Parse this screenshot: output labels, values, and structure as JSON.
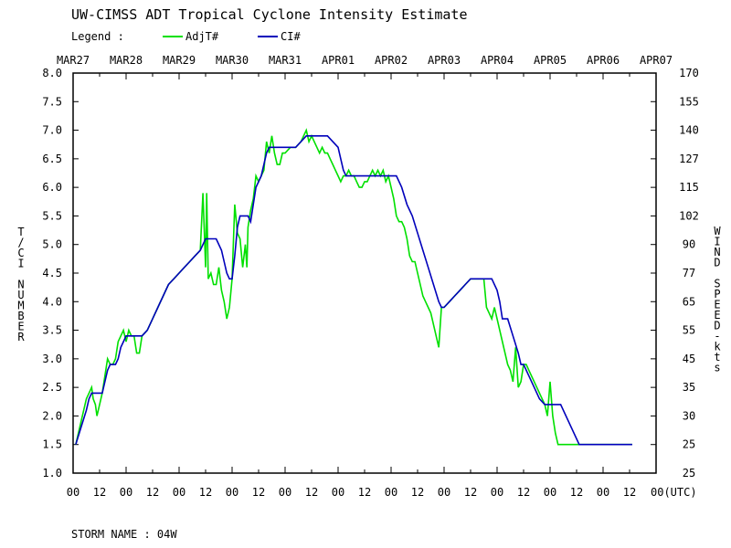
{
  "chart_data": {
    "type": "line",
    "title": "UW-CIMSS ADT Tropical Cyclone Intensity Estimate",
    "legend_label": "Legend :",
    "storm_label": "STORM NAME : 04W",
    "ylabel_left": "T/CI NUMBER",
    "ylabel_right": "WIND SPEED-kts",
    "ylim": [
      1.0,
      8.0
    ],
    "xlim_days": [
      0,
      11
    ],
    "date_labels": [
      "MAR27",
      "MAR28",
      "MAR29",
      "MAR30",
      "MAR31",
      "APR01",
      "APR02",
      "APR03",
      "APR04",
      "APR05",
      "APR06",
      "APR07"
    ],
    "hour_ticks": [
      "00",
      "12",
      "00",
      "12",
      "00",
      "12",
      "00",
      "12",
      "00",
      "12",
      "00",
      "12",
      "00",
      "12",
      "00",
      "12",
      "00",
      "12",
      "00",
      "12",
      "00",
      "12",
      "00(UTC)"
    ],
    "y_ticks_left": [
      "1.0",
      "1.5",
      "2.0",
      "2.5",
      "3.0",
      "3.5",
      "4.0",
      "4.5",
      "5.0",
      "5.5",
      "6.0",
      "6.5",
      "7.0",
      "7.5",
      "8.0"
    ],
    "y_ticks_right": [
      "25",
      "25",
      "30",
      "35",
      "45",
      "55",
      "65",
      "77",
      "90",
      "102",
      "115",
      "127",
      "140",
      "155",
      "170"
    ],
    "series": [
      {
        "name": "AdjT#",
        "color": "#00e000",
        "points": [
          [
            0.05,
            1.5
          ],
          [
            0.1,
            1.7
          ],
          [
            0.2,
            2.1
          ],
          [
            0.25,
            2.3
          ],
          [
            0.3,
            2.4
          ],
          [
            0.35,
            2.5
          ],
          [
            0.38,
            2.3
          ],
          [
            0.42,
            2.2
          ],
          [
            0.45,
            2.0
          ],
          [
            0.5,
            2.2
          ],
          [
            0.55,
            2.4
          ],
          [
            0.6,
            2.7
          ],
          [
            0.65,
            3.0
          ],
          [
            0.7,
            2.9
          ],
          [
            0.75,
            2.9
          ],
          [
            0.8,
            3.0
          ],
          [
            0.85,
            3.3
          ],
          [
            0.9,
            3.4
          ],
          [
            0.95,
            3.5
          ],
          [
            1.0,
            3.3
          ],
          [
            1.05,
            3.5
          ],
          [
            1.1,
            3.4
          ],
          [
            1.15,
            3.4
          ],
          [
            1.2,
            3.1
          ],
          [
            1.25,
            3.1
          ],
          [
            1.3,
            3.4
          ],
          [
            1.4,
            3.5
          ],
          [
            1.5,
            3.7
          ],
          [
            1.6,
            3.9
          ],
          [
            1.7,
            4.1
          ],
          [
            1.8,
            4.3
          ],
          [
            1.9,
            4.4
          ],
          [
            2.0,
            4.5
          ],
          [
            2.1,
            4.6
          ],
          [
            2.2,
            4.7
          ],
          [
            2.3,
            4.8
          ],
          [
            2.4,
            4.9
          ],
          [
            2.45,
            5.9
          ],
          [
            2.5,
            4.6
          ],
          [
            2.52,
            5.9
          ],
          [
            2.55,
            4.4
          ],
          [
            2.6,
            4.5
          ],
          [
            2.65,
            4.3
          ],
          [
            2.7,
            4.3
          ],
          [
            2.75,
            4.6
          ],
          [
            2.8,
            4.2
          ],
          [
            2.85,
            4.0
          ],
          [
            2.9,
            3.7
          ],
          [
            2.95,
            3.9
          ],
          [
            3.0,
            4.4
          ],
          [
            3.05,
            5.7
          ],
          [
            3.1,
            5.2
          ],
          [
            3.15,
            5.1
          ],
          [
            3.2,
            4.6
          ],
          [
            3.25,
            5.0
          ],
          [
            3.28,
            4.6
          ],
          [
            3.3,
            5.3
          ],
          [
            3.35,
            5.6
          ],
          [
            3.4,
            5.8
          ],
          [
            3.45,
            6.2
          ],
          [
            3.5,
            6.1
          ],
          [
            3.55,
            6.2
          ],
          [
            3.6,
            6.3
          ],
          [
            3.65,
            6.8
          ],
          [
            3.7,
            6.6
          ],
          [
            3.75,
            6.9
          ],
          [
            3.8,
            6.6
          ],
          [
            3.85,
            6.4
          ],
          [
            3.9,
            6.4
          ],
          [
            3.95,
            6.6
          ],
          [
            4.0,
            6.6
          ],
          [
            4.1,
            6.7
          ],
          [
            4.2,
            6.7
          ],
          [
            4.3,
            6.8
          ],
          [
            4.35,
            6.9
          ],
          [
            4.4,
            7.0
          ],
          [
            4.45,
            6.8
          ],
          [
            4.5,
            6.9
          ],
          [
            4.55,
            6.8
          ],
          [
            4.6,
            6.7
          ],
          [
            4.65,
            6.6
          ],
          [
            4.7,
            6.7
          ],
          [
            4.75,
            6.6
          ],
          [
            4.8,
            6.6
          ],
          [
            4.85,
            6.5
          ],
          [
            4.9,
            6.4
          ],
          [
            4.95,
            6.3
          ],
          [
            5.0,
            6.2
          ],
          [
            5.05,
            6.1
          ],
          [
            5.1,
            6.2
          ],
          [
            5.15,
            6.2
          ],
          [
            5.2,
            6.3
          ],
          [
            5.25,
            6.2
          ],
          [
            5.3,
            6.2
          ],
          [
            5.35,
            6.1
          ],
          [
            5.4,
            6.0
          ],
          [
            5.45,
            6.0
          ],
          [
            5.5,
            6.1
          ],
          [
            5.55,
            6.1
          ],
          [
            5.6,
            6.2
          ],
          [
            5.65,
            6.3
          ],
          [
            5.7,
            6.2
          ],
          [
            5.75,
            6.3
          ],
          [
            5.8,
            6.2
          ],
          [
            5.85,
            6.3
          ],
          [
            5.9,
            6.1
          ],
          [
            5.95,
            6.2
          ],
          [
            6.0,
            6.0
          ],
          [
            6.05,
            5.8
          ],
          [
            6.1,
            5.5
          ],
          [
            6.15,
            5.4
          ],
          [
            6.2,
            5.4
          ],
          [
            6.25,
            5.3
          ],
          [
            6.3,
            5.1
          ],
          [
            6.35,
            4.8
          ],
          [
            6.4,
            4.7
          ],
          [
            6.45,
            4.7
          ],
          [
            6.5,
            4.5
          ],
          [
            6.55,
            4.3
          ],
          [
            6.6,
            4.1
          ],
          [
            6.65,
            4.0
          ],
          [
            6.7,
            3.9
          ],
          [
            6.75,
            3.8
          ],
          [
            6.8,
            3.6
          ],
          [
            6.85,
            3.4
          ],
          [
            6.9,
            3.2
          ],
          [
            6.95,
            3.9
          ],
          [
            7.0,
            3.9
          ],
          [
            7.05,
            3.95
          ],
          [
            7.1,
            4.0
          ],
          [
            7.2,
            4.1
          ],
          [
            7.3,
            4.2
          ],
          [
            7.4,
            4.3
          ],
          [
            7.5,
            4.4
          ],
          [
            7.6,
            4.4
          ],
          [
            7.7,
            4.4
          ],
          [
            7.75,
            4.4
          ],
          [
            7.8,
            3.9
          ],
          [
            7.85,
            3.8
          ],
          [
            7.9,
            3.7
          ],
          [
            7.95,
            3.9
          ],
          [
            8.0,
            3.7
          ],
          [
            8.05,
            3.5
          ],
          [
            8.1,
            3.3
          ],
          [
            8.15,
            3.1
          ],
          [
            8.2,
            2.9
          ],
          [
            8.25,
            2.8
          ],
          [
            8.3,
            2.6
          ],
          [
            8.35,
            3.2
          ],
          [
            8.4,
            2.5
          ],
          [
            8.45,
            2.6
          ],
          [
            8.5,
            2.9
          ],
          [
            8.55,
            2.9
          ],
          [
            8.6,
            2.8
          ],
          [
            8.7,
            2.6
          ],
          [
            8.8,
            2.4
          ],
          [
            8.9,
            2.2
          ],
          [
            8.95,
            2.0
          ],
          [
            9.0,
            2.6
          ],
          [
            9.05,
            2.0
          ],
          [
            9.1,
            1.7
          ],
          [
            9.15,
            1.5
          ],
          [
            9.2,
            1.5
          ],
          [
            9.3,
            1.5
          ],
          [
            9.4,
            1.5
          ],
          [
            9.5,
            1.5
          ],
          [
            9.6,
            1.5
          ],
          [
            9.8,
            1.5
          ],
          [
            10.0,
            1.5
          ],
          [
            10.2,
            1.5
          ],
          [
            10.4,
            1.5
          ],
          [
            10.55,
            1.5
          ]
        ]
      },
      {
        "name": "CI#",
        "color": "#0000bb",
        "points": [
          [
            0.05,
            1.5
          ],
          [
            0.15,
            1.8
          ],
          [
            0.25,
            2.1
          ],
          [
            0.3,
            2.3
          ],
          [
            0.35,
            2.4
          ],
          [
            0.5,
            2.4
          ],
          [
            0.55,
            2.4
          ],
          [
            0.6,
            2.6
          ],
          [
            0.65,
            2.8
          ],
          [
            0.7,
            2.9
          ],
          [
            0.8,
            2.9
          ],
          [
            0.85,
            3.0
          ],
          [
            0.9,
            3.2
          ],
          [
            0.95,
            3.3
          ],
          [
            1.0,
            3.4
          ],
          [
            1.1,
            3.4
          ],
          [
            1.2,
            3.4
          ],
          [
            1.3,
            3.4
          ],
          [
            1.4,
            3.5
          ],
          [
            1.5,
            3.7
          ],
          [
            1.6,
            3.9
          ],
          [
            1.7,
            4.1
          ],
          [
            1.8,
            4.3
          ],
          [
            1.9,
            4.4
          ],
          [
            2.0,
            4.5
          ],
          [
            2.1,
            4.6
          ],
          [
            2.2,
            4.7
          ],
          [
            2.3,
            4.8
          ],
          [
            2.4,
            4.9
          ],
          [
            2.5,
            5.1
          ],
          [
            2.6,
            5.1
          ],
          [
            2.7,
            5.1
          ],
          [
            2.8,
            4.9
          ],
          [
            2.85,
            4.7
          ],
          [
            2.9,
            4.5
          ],
          [
            2.95,
            4.4
          ],
          [
            3.0,
            4.4
          ],
          [
            3.05,
            4.8
          ],
          [
            3.1,
            5.3
          ],
          [
            3.15,
            5.5
          ],
          [
            3.3,
            5.5
          ],
          [
            3.35,
            5.4
          ],
          [
            3.4,
            5.7
          ],
          [
            3.45,
            6.0
          ],
          [
            3.5,
            6.1
          ],
          [
            3.55,
            6.2
          ],
          [
            3.6,
            6.4
          ],
          [
            3.65,
            6.6
          ],
          [
            3.7,
            6.7
          ],
          [
            3.9,
            6.7
          ],
          [
            4.1,
            6.7
          ],
          [
            4.2,
            6.7
          ],
          [
            4.3,
            6.8
          ],
          [
            4.4,
            6.9
          ],
          [
            4.5,
            6.9
          ],
          [
            4.6,
            6.9
          ],
          [
            4.8,
            6.9
          ],
          [
            4.9,
            6.8
          ],
          [
            5.0,
            6.7
          ],
          [
            5.05,
            6.5
          ],
          [
            5.1,
            6.3
          ],
          [
            5.15,
            6.2
          ],
          [
            5.3,
            6.2
          ],
          [
            5.5,
            6.2
          ],
          [
            5.7,
            6.2
          ],
          [
            5.9,
            6.2
          ],
          [
            6.0,
            6.2
          ],
          [
            6.1,
            6.2
          ],
          [
            6.2,
            6.0
          ],
          [
            6.3,
            5.7
          ],
          [
            6.4,
            5.5
          ],
          [
            6.5,
            5.2
          ],
          [
            6.6,
            4.9
          ],
          [
            6.7,
            4.6
          ],
          [
            6.8,
            4.3
          ],
          [
            6.9,
            4.0
          ],
          [
            6.95,
            3.9
          ],
          [
            7.0,
            3.9
          ],
          [
            7.1,
            4.0
          ],
          [
            7.2,
            4.1
          ],
          [
            7.3,
            4.2
          ],
          [
            7.4,
            4.3
          ],
          [
            7.5,
            4.4
          ],
          [
            7.7,
            4.4
          ],
          [
            7.9,
            4.4
          ],
          [
            8.0,
            4.2
          ],
          [
            8.05,
            4.0
          ],
          [
            8.1,
            3.7
          ],
          [
            8.2,
            3.7
          ],
          [
            8.3,
            3.4
          ],
          [
            8.4,
            3.1
          ],
          [
            8.45,
            2.9
          ],
          [
            8.5,
            2.9
          ],
          [
            8.6,
            2.7
          ],
          [
            8.7,
            2.5
          ],
          [
            8.8,
            2.3
          ],
          [
            8.9,
            2.2
          ],
          [
            9.0,
            2.2
          ],
          [
            9.2,
            2.2
          ],
          [
            9.4,
            1.8
          ],
          [
            9.55,
            1.5
          ],
          [
            9.8,
            1.5
          ],
          [
            10.0,
            1.5
          ],
          [
            10.3,
            1.5
          ],
          [
            10.55,
            1.5
          ]
        ]
      }
    ]
  }
}
